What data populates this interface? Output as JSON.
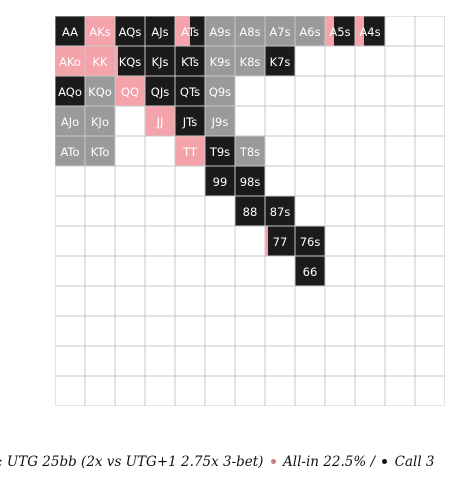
{
  "chart_data": {
    "type": "heatmap",
    "title": ": UTG 25bb (2x vs UTG+1 2.75x 3-bet)",
    "legend": [
      {
        "action": "allin",
        "label": "All-in 22.5% /",
        "color": "#f4a3ab"
      },
      {
        "action": "call",
        "label": "Call 3",
        "color": "#1c1a1b"
      }
    ],
    "colors": {
      "allin": "#f4a3ab",
      "call": "#1c1a1b",
      "fold": "#9a999b",
      "empty": "#ffffff",
      "grid": "#c8c8c8",
      "allin_dot": "#c97f7f",
      "call_dot": "#111111"
    },
    "grid_size": 13,
    "rows": [
      {
        "cells": [
          {
            "label": "AA",
            "action": "call"
          },
          {
            "label": "AKs",
            "action": "allin"
          },
          {
            "label": "AQs",
            "action": "call"
          },
          {
            "label": "AJs",
            "action": "call"
          },
          {
            "label": "ATs",
            "action": "split",
            "allin": 0.5
          },
          {
            "label": "A9s",
            "action": "fold"
          },
          {
            "label": "A8s",
            "action": "fold"
          },
          {
            "label": "A7s",
            "action": "fold"
          },
          {
            "label": "A6s",
            "action": "fold"
          },
          {
            "label": "A5s",
            "action": "split",
            "allin": 0.3
          },
          {
            "label": "A4s",
            "action": "split",
            "allin": 0.3
          }
        ]
      },
      {
        "cells": [
          {
            "label": "AKo",
            "action": "allin"
          },
          {
            "label": "KK",
            "action": "allin"
          },
          {
            "label": "KQs",
            "action": "split",
            "allin": 0.1
          },
          {
            "label": "KJs",
            "action": "call"
          },
          {
            "label": "KTs",
            "action": "call"
          },
          {
            "label": "K9s",
            "action": "fold"
          },
          {
            "label": "K8s",
            "action": "fold"
          },
          {
            "label": "K7s",
            "action": "call"
          }
        ]
      },
      {
        "cells": [
          {
            "label": "AQo",
            "action": "call"
          },
          {
            "label": "KQo",
            "action": "fold"
          },
          {
            "label": "QQ",
            "action": "allin"
          },
          {
            "label": "QJs",
            "action": "call"
          },
          {
            "label": "QTs",
            "action": "call"
          },
          {
            "label": "Q9s",
            "action": "fold"
          }
        ]
      },
      {
        "cells": [
          {
            "label": "AJo",
            "action": "fold"
          },
          {
            "label": "KJo",
            "action": "fold"
          },
          {
            "label": "",
            "action": "empty"
          },
          {
            "label": "JJ",
            "action": "allin"
          },
          {
            "label": "JTs",
            "action": "call"
          },
          {
            "label": "J9s",
            "action": "fold"
          }
        ]
      },
      {
        "cells": [
          {
            "label": "ATo",
            "action": "fold"
          },
          {
            "label": "KTo",
            "action": "fold"
          },
          {
            "label": "",
            "action": "empty"
          },
          {
            "label": "",
            "action": "empty"
          },
          {
            "label": "TT",
            "action": "allin"
          },
          {
            "label": "T9s",
            "action": "call"
          },
          {
            "label": "T8s",
            "action": "fold"
          }
        ]
      },
      {
        "cells": [
          {
            "label": "",
            "action": "empty"
          },
          {
            "label": "",
            "action": "empty"
          },
          {
            "label": "",
            "action": "empty"
          },
          {
            "label": "",
            "action": "empty"
          },
          {
            "label": "",
            "action": "empty"
          },
          {
            "label": "99",
            "action": "call"
          },
          {
            "label": "98s",
            "action": "call"
          }
        ]
      },
      {
        "cells": [
          {
            "label": "",
            "action": "empty"
          },
          {
            "label": "",
            "action": "empty"
          },
          {
            "label": "",
            "action": "empty"
          },
          {
            "label": "",
            "action": "empty"
          },
          {
            "label": "",
            "action": "empty"
          },
          {
            "label": "",
            "action": "empty"
          },
          {
            "label": "88",
            "action": "call"
          },
          {
            "label": "87s",
            "action": "call"
          }
        ]
      },
      {
        "cells": [
          {
            "label": "",
            "action": "empty"
          },
          {
            "label": "",
            "action": "empty"
          },
          {
            "label": "",
            "action": "empty"
          },
          {
            "label": "",
            "action": "empty"
          },
          {
            "label": "",
            "action": "empty"
          },
          {
            "label": "",
            "action": "empty"
          },
          {
            "label": "",
            "action": "empty"
          },
          {
            "label": "77",
            "action": "split",
            "allin": 0.1
          },
          {
            "label": "76s",
            "action": "call"
          }
        ]
      },
      {
        "cells": [
          {
            "label": "",
            "action": "empty"
          },
          {
            "label": "",
            "action": "empty"
          },
          {
            "label": "",
            "action": "empty"
          },
          {
            "label": "",
            "action": "empty"
          },
          {
            "label": "",
            "action": "empty"
          },
          {
            "label": "",
            "action": "empty"
          },
          {
            "label": "",
            "action": "empty"
          },
          {
            "label": "",
            "action": "empty"
          },
          {
            "label": "66",
            "action": "call"
          }
        ]
      }
    ]
  }
}
